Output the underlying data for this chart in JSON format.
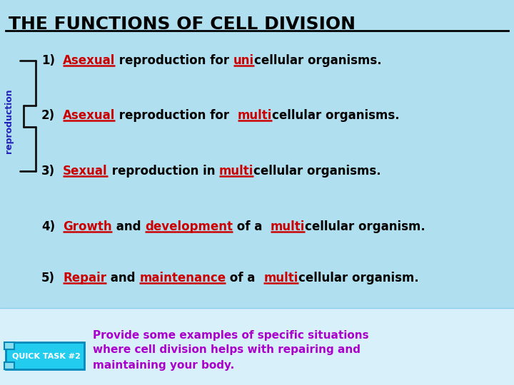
{
  "title": "THE FUNCTIONS OF CELL DIVISION",
  "bg_color": "#b8e8f8",
  "bottom_bg_color": "#e0f4fc",
  "title_color": "#000000",
  "reproduction_label": "reproduction",
  "reproduction_color": "#2222bb",
  "lines": [
    {
      "num": "1)",
      "parts": [
        {
          "text": "Asexual",
          "color": "#cc0000",
          "underline": true
        },
        {
          "text": " reproduction for ",
          "color": "#000000",
          "underline": false
        },
        {
          "text": "uni",
          "color": "#cc0000",
          "underline": true
        },
        {
          "text": "cellular organisms.",
          "color": "#000000",
          "underline": false
        }
      ],
      "bracket": true
    },
    {
      "num": "2)",
      "parts": [
        {
          "text": "Asexual",
          "color": "#cc0000",
          "underline": true
        },
        {
          "text": " reproduction for  ",
          "color": "#000000",
          "underline": false
        },
        {
          "text": "multi",
          "color": "#cc0000",
          "underline": true
        },
        {
          "text": "cellular organisms.",
          "color": "#000000",
          "underline": false
        }
      ],
      "bracket": true
    },
    {
      "num": "3)",
      "parts": [
        {
          "text": "Sexual",
          "color": "#cc0000",
          "underline": true
        },
        {
          "text": " reproduction in ",
          "color": "#000000",
          "underline": false
        },
        {
          "text": "multi",
          "color": "#cc0000",
          "underline": true
        },
        {
          "text": "cellular organisms.",
          "color": "#000000",
          "underline": false
        }
      ],
      "bracket": true
    },
    {
      "num": "4)",
      "parts": [
        {
          "text": "Growth",
          "color": "#cc0000",
          "underline": true
        },
        {
          "text": " and ",
          "color": "#000000",
          "underline": false
        },
        {
          "text": "development",
          "color": "#cc0000",
          "underline": true
        },
        {
          "text": " of a  ",
          "color": "#000000",
          "underline": false
        },
        {
          "text": "multi",
          "color": "#cc0000",
          "underline": true
        },
        {
          "text": "cellular organism.",
          "color": "#000000",
          "underline": false
        }
      ],
      "bracket": false
    },
    {
      "num": "5)",
      "parts": [
        {
          "text": "Repair",
          "color": "#cc0000",
          "underline": true
        },
        {
          "text": " and ",
          "color": "#000000",
          "underline": false
        },
        {
          "text": "maintenance",
          "color": "#cc0000",
          "underline": true
        },
        {
          "text": " of a  ",
          "color": "#000000",
          "underline": false
        },
        {
          "text": "multi",
          "color": "#cc0000",
          "underline": true
        },
        {
          "text": "cellular organism.",
          "color": "#000000",
          "underline": false
        }
      ],
      "bracket": false
    }
  ],
  "quick_task_label": "QUICK TASK #2",
  "quick_task_bg": "#22ccee",
  "quick_task_border": "#0088bb",
  "quick_task_text": "Provide some examples of specific situations\nwhere cell division helps with repairing and\nmaintaining your body.",
  "quick_task_text_color": "#aa00cc",
  "font_size_title": 18,
  "font_size_body": 12,
  "font_size_repro": 9,
  "font_size_quick_label": 8,
  "font_size_quick_text": 11
}
